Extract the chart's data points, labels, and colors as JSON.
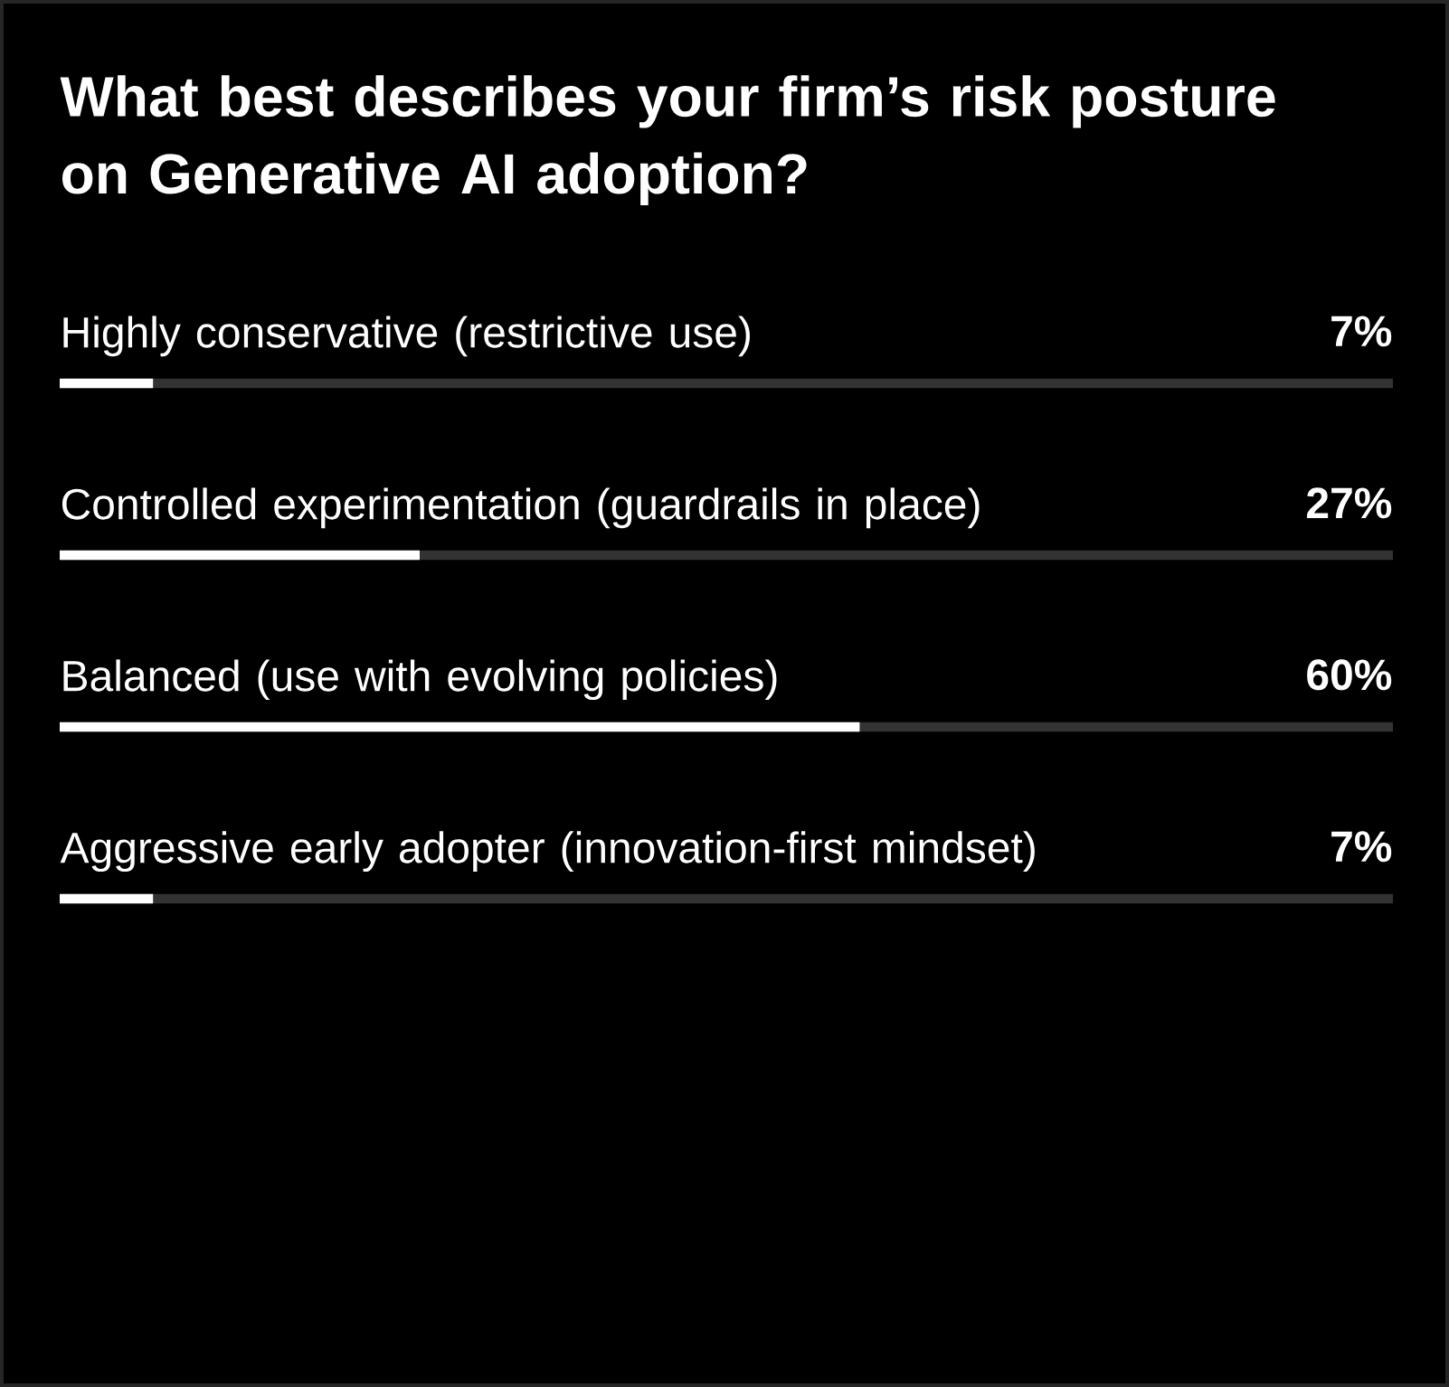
{
  "chart_data": {
    "type": "bar",
    "orientation": "horizontal",
    "title": "What best describes your firm’s risk posture on Generative AI adoption?",
    "categories": [
      "Highly conservative (restrictive use)",
      "Controlled experimentation (guardrails in place)",
      "Balanced (use with evolving policies)",
      "Aggressive early adopter (innovation-first mindset)"
    ],
    "values": [
      7,
      27,
      60,
      7
    ],
    "value_labels": [
      "7%",
      "27%",
      "60%",
      "7%"
    ],
    "color": "#ffffff",
    "xlim": [
      0,
      100
    ]
  }
}
